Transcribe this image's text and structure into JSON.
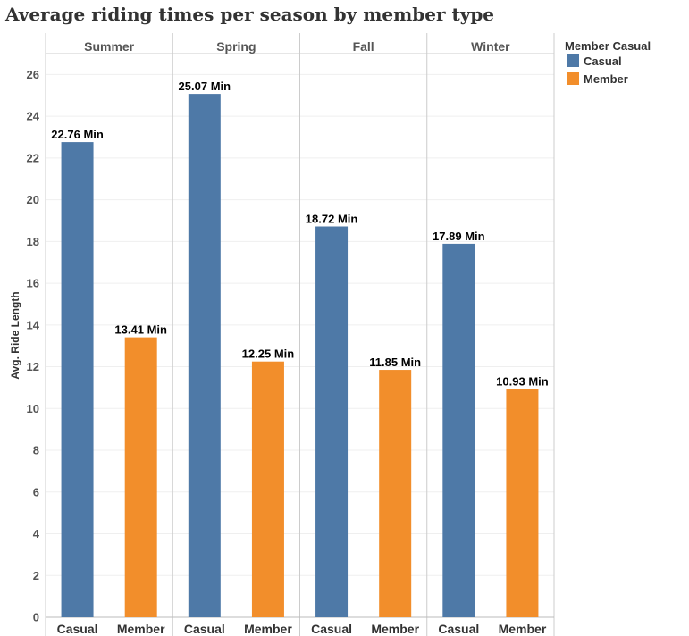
{
  "chart_data": {
    "type": "bar",
    "title": "Average riding times per season by member type",
    "ylabel": "Avg. Ride Length",
    "xlabel": "",
    "ylim": [
      0,
      27
    ],
    "yticks": [
      0,
      2,
      4,
      6,
      8,
      10,
      12,
      14,
      16,
      18,
      20,
      22,
      24,
      26
    ],
    "grid": true,
    "legend": {
      "title": "Member Casual",
      "placement": "top-right",
      "entries": [
        {
          "label": "Casual",
          "color": "#4e79a7"
        },
        {
          "label": "Member",
          "color": "#f28e2b"
        }
      ]
    },
    "panels": [
      "Summer",
      "Spring",
      "Fall",
      "Winter"
    ],
    "categories": [
      "Casual",
      "Member"
    ],
    "series": [
      {
        "panel": "Summer",
        "values": [
          22.76,
          13.41
        ],
        "labels": [
          "22.76 Min",
          "13.41 Min"
        ]
      },
      {
        "panel": "Spring",
        "values": [
          25.07,
          12.25
        ],
        "labels": [
          "25.07 Min",
          "12.25 Min"
        ]
      },
      {
        "panel": "Fall",
        "values": [
          18.72,
          11.85
        ],
        "labels": [
          "18.72 Min",
          "11.85 Min"
        ]
      },
      {
        "panel": "Winter",
        "values": [
          17.89,
          10.93
        ],
        "labels": [
          "17.89 Min",
          "10.93 Min"
        ]
      }
    ],
    "colors": {
      "Casual": "#4e79a7",
      "Member": "#f28e2b"
    }
  }
}
